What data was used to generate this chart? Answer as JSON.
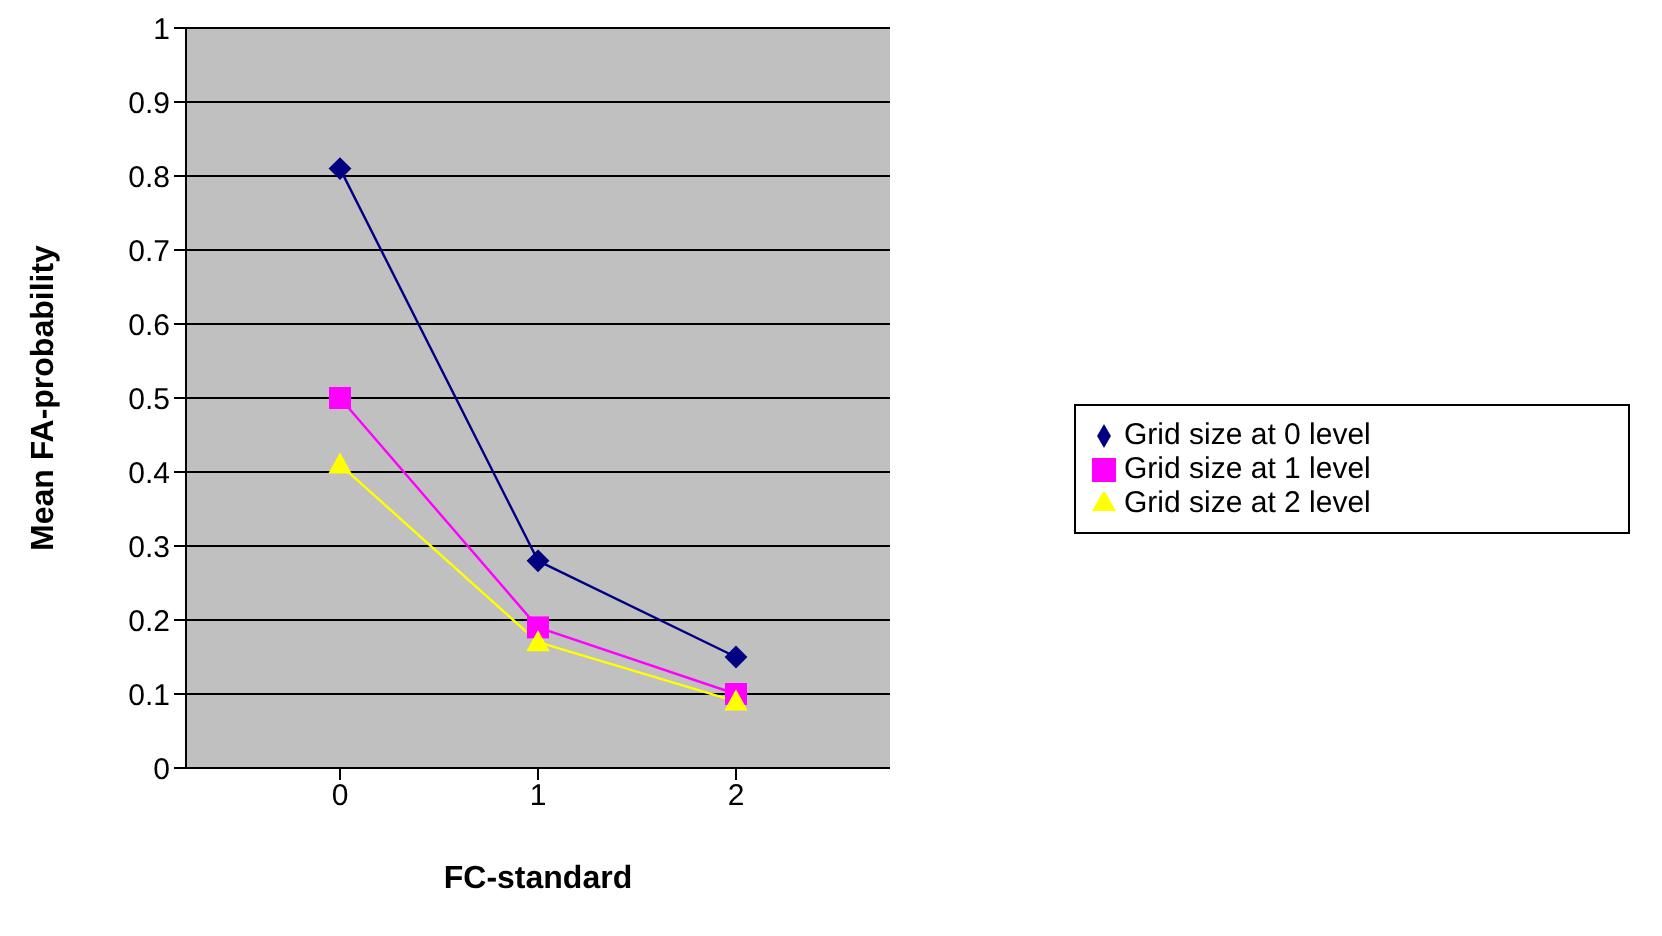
{
  "chart_data": {
    "type": "line",
    "xlabel": "FC-standard",
    "ylabel": "Mean FA-probability",
    "categories": [
      "0",
      "1",
      "2"
    ],
    "series": [
      {
        "name": "Grid size at 0 level",
        "color": "#000080",
        "marker": "diamond",
        "values": [
          0.81,
          0.28,
          0.15
        ]
      },
      {
        "name": "Grid size at 1 level",
        "color": "#ff00ff",
        "marker": "square",
        "values": [
          0.5,
          0.19,
          0.1
        ]
      },
      {
        "name": "Grid size at 2 level",
        "color": "#ffff00",
        "marker": "triangle",
        "values": [
          0.41,
          0.17,
          0.09
        ]
      }
    ],
    "ylim": [
      0,
      1
    ],
    "yticks": [
      0,
      0.1,
      0.2,
      0.3,
      0.4,
      0.5,
      0.6,
      0.7,
      0.8,
      0.9,
      1
    ],
    "grid": "y",
    "legend": "right",
    "line_style": "solid"
  }
}
